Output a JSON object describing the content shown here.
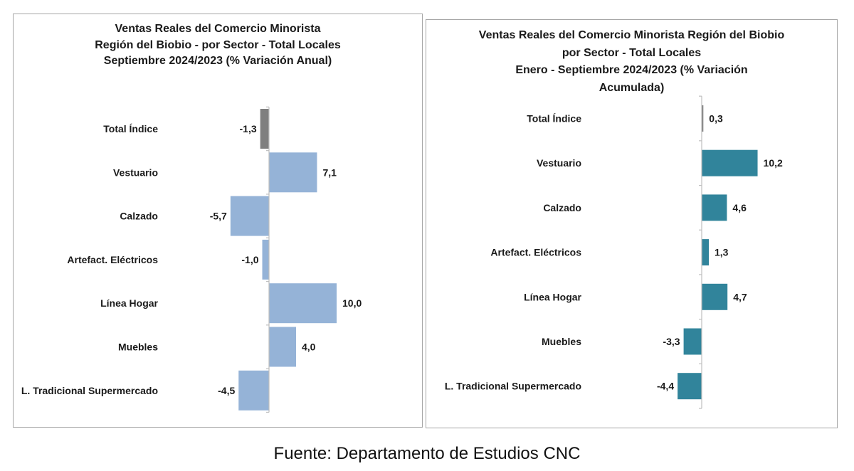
{
  "chart_data": [
    {
      "type": "bar",
      "orientation": "horizontal",
      "title": [
        "Ventas Reales del Comercio Minorista",
        "Región del Biobio - por Sector - Total Locales",
        "Septiembre 2024/2023 (% Variación Anual)"
      ],
      "categories": [
        "Total Índice",
        "Vestuario",
        "Calzado",
        "Artefact. Eléctricos",
        "Línea Hogar",
        "Muebles",
        "L. Tradicional Supermercado"
      ],
      "values": [
        -1.3,
        7.1,
        -5.7,
        -1.0,
        10.0,
        4.0,
        -4.5
      ],
      "value_labels": [
        "-1,3",
        "7,1",
        "-5,7",
        "-1,0",
        "10,0",
        "4,0",
        "-4,5"
      ],
      "colors": [
        "#7f7f7f",
        "#95b3d7",
        "#95b3d7",
        "#95b3d7",
        "#95b3d7",
        "#95b3d7",
        "#95b3d7"
      ],
      "xlim": [
        -6,
        10.5
      ],
      "grid": false,
      "legend": "none"
    },
    {
      "type": "bar",
      "orientation": "horizontal",
      "title": [
        "Ventas Reales del Comercio Minorista Región del Biobio",
        "por Sector - Total Locales",
        "Enero - Septiembre 2024/2023  (% Variación",
        "Acumulada)"
      ],
      "categories": [
        "Total Índice",
        "Vestuario",
        "Calzado",
        "Artefact. Eléctricos",
        "Línea Hogar",
        "Muebles",
        "L. Tradicional Supermercado"
      ],
      "values": [
        0.3,
        10.2,
        4.6,
        1.3,
        4.7,
        -3.3,
        -4.4
      ],
      "value_labels": [
        "0,3",
        "10,2",
        "4,6",
        "1,3",
        "4,7",
        "-3,3",
        "-4,4"
      ],
      "colors": [
        "#7f7f7f",
        "#31849b",
        "#31849b",
        "#31849b",
        "#31849b",
        "#31849b",
        "#31849b"
      ],
      "xlim": [
        -5,
        11
      ],
      "grid": false,
      "legend": "none"
    }
  ],
  "source": "Fuente: Departamento de Estudios CNC"
}
